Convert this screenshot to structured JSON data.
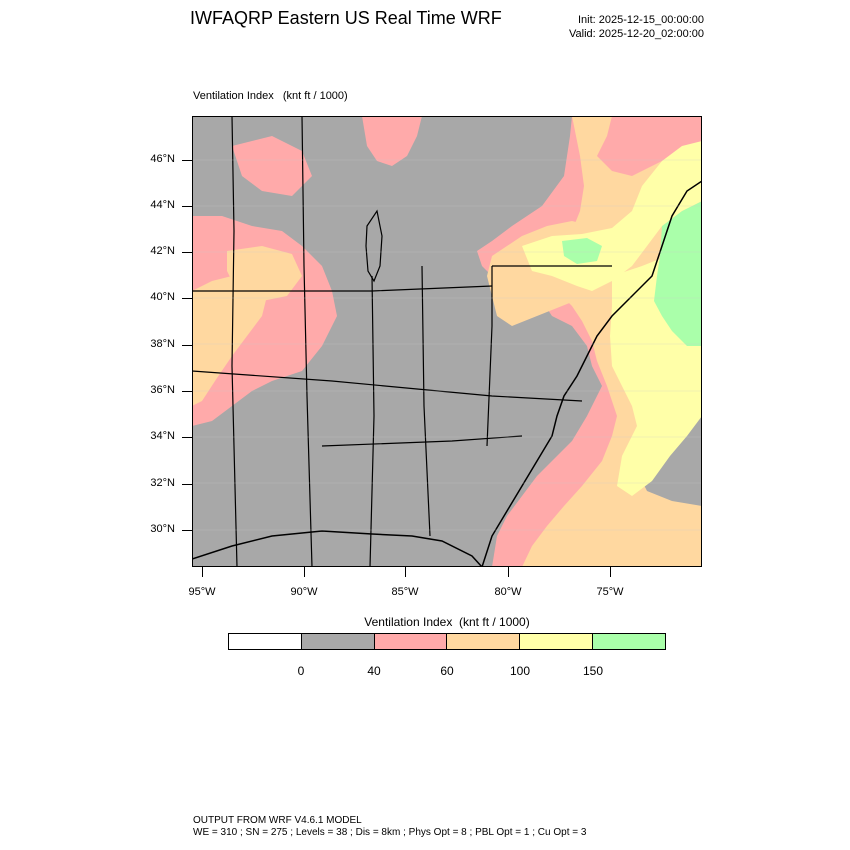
{
  "header": {
    "title": "IWFAQRP Eastern US Real Time WRF",
    "init": "Init: 2025-12-15_00:00:00",
    "valid": "Valid: 2025-12-20_02:00:00"
  },
  "field": {
    "name": "Ventilation Index",
    "units": "(knt ft / 1000)",
    "label": "Ventilation Index   (knt ft / 1000)"
  },
  "map": {
    "lat_labels": [
      "46°N",
      "44°N",
      "42°N",
      "40°N",
      "38°N",
      "36°N",
      "34°N",
      "32°N",
      "30°N"
    ],
    "lon_labels": [
      "95°W",
      "90°W",
      "85°W",
      "80°W",
      "75°W"
    ],
    "legend_colors": {
      "below_0": "#ffffff",
      "0_40": "#a8a8a8",
      "40_60": "#ffaaaa",
      "60_100": "#ffd8a0",
      "100_150": "#ffffa8",
      "above_150": "#aaffaa"
    }
  },
  "colorbar": {
    "title": "Ventilation Index  (knt ft / 1000)",
    "boxes": [
      {
        "color": "#ffffff"
      },
      {
        "color": "#a8a8a8"
      },
      {
        "color": "#ffaaaa"
      },
      {
        "color": "#ffd8a0"
      },
      {
        "color": "#ffffa8"
      },
      {
        "color": "#aaffaa"
      }
    ],
    "labels": [
      "0",
      "40",
      "60",
      "100",
      "150"
    ]
  },
  "footer": {
    "line1": "OUTPUT FROM WRF V4.6.1 MODEL",
    "line2": "WE = 310 ; SN = 275 ; Levels = 38 ; Dis = 8km ; Phys Opt = 8 ; PBL Opt = 1 ; Cu Opt = 3"
  }
}
